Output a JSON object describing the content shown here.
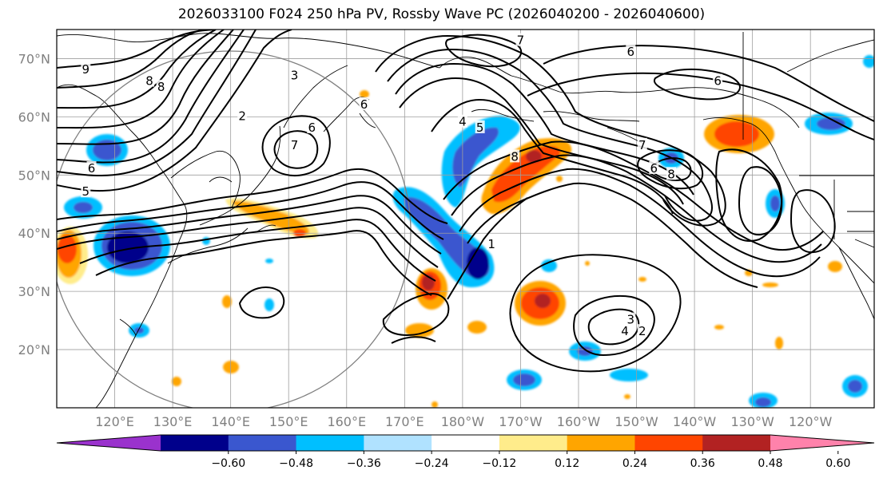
{
  "title": "2026033100 F024 250 hPa PV, Rossby Wave PC (2026040200 - 2026040600)",
  "lat_axis": {
    "labels": [
      "70°N",
      "60°N",
      "50°N",
      "40°N",
      "30°N",
      "20°N"
    ],
    "values": [
      70,
      60,
      50,
      40,
      30,
      20
    ],
    "range": [
      10,
      75
    ]
  },
  "lon_axis": {
    "labels": [
      "120°E",
      "130°E",
      "140°E",
      "150°E",
      "160°E",
      "170°E",
      "180°W",
      "170°W",
      "160°W",
      "150°W",
      "140°W",
      "130°W",
      "120°W"
    ],
    "values": [
      120,
      130,
      140,
      150,
      160,
      170,
      180,
      190,
      200,
      210,
      220,
      230,
      240
    ],
    "range": [
      110,
      251
    ]
  },
  "colorbar": {
    "tick_labels": [
      "−0.60",
      "−0.48",
      "−0.36",
      "−0.24",
      "−0.12",
      "0.12",
      "0.24",
      "0.36",
      "0.48",
      "0.60"
    ],
    "colors": [
      "#9a32cd",
      "#00008b",
      "#3a57cf",
      "#00bfff",
      "#b0e2ff",
      "#ffffff",
      "#ffec8b",
      "#ffa500",
      "#ff4500",
      "#b22222",
      "#ff82ab"
    ]
  },
  "contour_labels": [
    {
      "text": "9",
      "lon": 115,
      "lat": 68
    },
    {
      "text": "8",
      "lon": 126,
      "lat": 66
    },
    {
      "text": "8",
      "lon": 128,
      "lat": 65
    },
    {
      "text": "3",
      "lon": 151,
      "lat": 67
    },
    {
      "text": "2",
      "lon": 142,
      "lat": 60
    },
    {
      "text": "7",
      "lon": 151,
      "lat": 55
    },
    {
      "text": "6",
      "lon": 163,
      "lat": 62
    },
    {
      "text": "6",
      "lon": 154,
      "lat": 58
    },
    {
      "text": "7",
      "lon": 190,
      "lat": 73
    },
    {
      "text": "6",
      "lon": 209,
      "lat": 71
    },
    {
      "text": "6",
      "lon": 224,
      "lat": 66
    },
    {
      "text": "4",
      "lon": 180,
      "lat": 59
    },
    {
      "text": "5",
      "lon": 183,
      "lat": 58
    },
    {
      "text": "8",
      "lon": 189,
      "lat": 53
    },
    {
      "text": "7",
      "lon": 211,
      "lat": 55
    },
    {
      "text": "6",
      "lon": 213,
      "lat": 51
    },
    {
      "text": "8",
      "lon": 216,
      "lat": 50
    },
    {
      "text": "3",
      "lon": 209,
      "lat": 25
    },
    {
      "text": "4",
      "lon": 208,
      "lat": 23
    },
    {
      "text": "2",
      "lon": 211,
      "lat": 23
    },
    {
      "text": "1",
      "lon": 185,
      "lat": 38
    },
    {
      "text": "6",
      "lon": 116,
      "lat": 51
    },
    {
      "text": "5",
      "lon": 115,
      "lat": 47
    }
  ]
}
